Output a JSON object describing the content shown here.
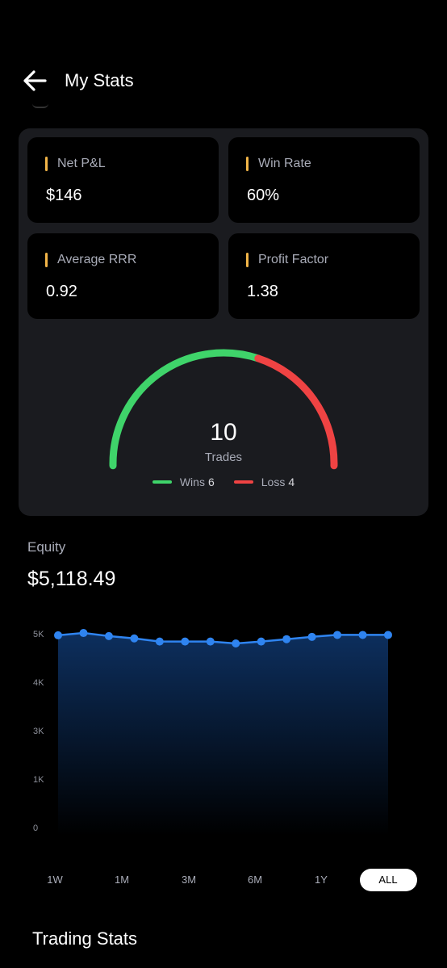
{
  "header": {
    "title": "My Stats",
    "back_icon": "arrow-left-icon"
  },
  "stats": [
    {
      "label": "Net P&L",
      "value": "$146"
    },
    {
      "label": "Win Rate",
      "value": "60%"
    },
    {
      "label": "Average RRR",
      "value": "0.92"
    },
    {
      "label": "Profit Factor",
      "value": "1.38"
    }
  ],
  "gauge": {
    "total": "10",
    "caption": "Trades",
    "wins_label": "Wins",
    "wins": "6",
    "loss_label": "Loss",
    "loss": "4",
    "win_color": "#3fd46a",
    "loss_color": "#ef4343",
    "accent_color": "#f2b548"
  },
  "equity": {
    "label": "Equity",
    "value": "$5,118.49"
  },
  "chart_data": {
    "type": "area",
    "y_ticks": [
      "5K",
      "4K",
      "3K",
      "1K",
      "0"
    ],
    "ylim": [
      0,
      5000
    ],
    "values": [
      4960,
      5020,
      4940,
      4880,
      4800,
      4800,
      4800,
      4750,
      4800,
      4860,
      4920,
      4970,
      4970,
      4970
    ],
    "line_color": "#2f84f0",
    "fill_color": "#0d2f5e"
  },
  "ranges": [
    "1W",
    "1M",
    "3M",
    "6M",
    "1Y",
    "ALL"
  ],
  "active_range": "ALL",
  "section": {
    "title": "Trading Stats"
  }
}
